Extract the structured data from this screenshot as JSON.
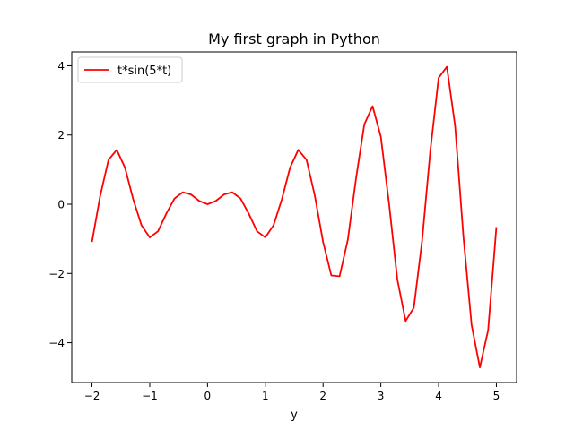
{
  "chart_data": {
    "type": "line",
    "title": "My first graph in Python",
    "xlabel": "y",
    "ylabel": "",
    "xlim": [
      -2.35,
      5.35
    ],
    "ylim": [
      -5.15,
      4.4
    ],
    "xticks": [
      -2,
      -1,
      0,
      1,
      2,
      3,
      4,
      5
    ],
    "xtick_labels": [
      "−2",
      "−1",
      "0",
      "1",
      "2",
      "3",
      "4",
      "5"
    ],
    "yticks": [
      -4,
      -2,
      0,
      2,
      4
    ],
    "ytick_labels": [
      "−4",
      "−2",
      "0",
      "2",
      "4"
    ],
    "grid": false,
    "legend_position": "upper-left",
    "series": [
      {
        "name": "t*sin(5*t)",
        "color": "#ff0000",
        "x": [
          -2.0,
          -1.857,
          -1.714,
          -1.571,
          -1.429,
          -1.286,
          -1.143,
          -1.0,
          -0.857,
          -0.714,
          -0.571,
          -0.429,
          -0.286,
          -0.143,
          0.0,
          0.143,
          0.286,
          0.429,
          0.571,
          0.714,
          0.857,
          1.0,
          1.143,
          1.286,
          1.429,
          1.571,
          1.714,
          1.857,
          2.0,
          2.143,
          2.286,
          2.429,
          2.571,
          2.714,
          2.857,
          3.0,
          3.143,
          3.286,
          3.429,
          3.571,
          3.714,
          3.857,
          4.0,
          4.143,
          4.286,
          4.429,
          4.571,
          4.714,
          4.857,
          5.0
        ],
        "y": [
          -1.088,
          0.247,
          1.283,
          1.571,
          1.059,
          0.139,
          -0.607,
          -0.959,
          -0.781,
          -0.273,
          0.166,
          0.347,
          0.282,
          0.094,
          0.0,
          0.094,
          0.282,
          0.347,
          0.166,
          -0.273,
          -0.781,
          -0.959,
          -0.607,
          0.139,
          1.059,
          1.571,
          1.283,
          0.247,
          -1.088,
          -2.058,
          -2.079,
          -1.024,
          0.751,
          2.306,
          2.834,
          1.951,
          0.005,
          -2.174,
          -3.372,
          -2.989,
          -1.057,
          1.554,
          3.651,
          3.972,
          2.257,
          -0.927,
          -3.488,
          -4.714,
          -3.64,
          -0.662
        ]
      }
    ]
  }
}
